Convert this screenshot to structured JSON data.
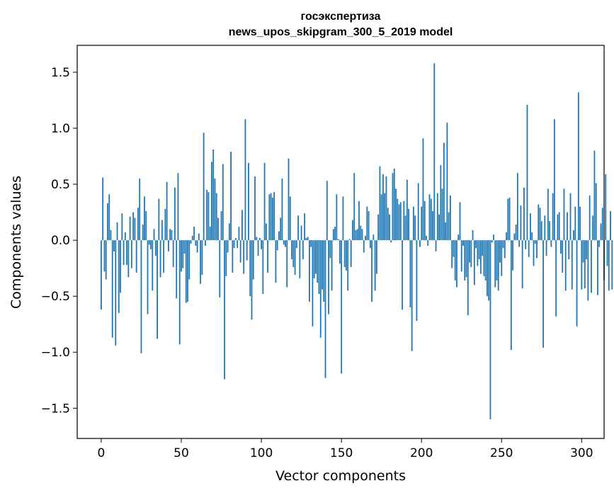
{
  "chart_data": {
    "type": "bar",
    "title_line1": "госэкспертиза",
    "title_line2": "news_upos_skipgram_300_5_2019 model",
    "xlabel": "Vector components",
    "ylabel": "Components values",
    "xlim": [
      -15,
      314
    ],
    "ylim": [
      -1.77,
      1.74
    ],
    "x_ticks": [
      0,
      50,
      100,
      150,
      200,
      250,
      300
    ],
    "x_tick_labels": [
      "0",
      "50",
      "100",
      "150",
      "200",
      "250",
      "300"
    ],
    "y_ticks": [
      -1.5,
      -1.0,
      -0.5,
      0.0,
      0.5,
      1.0,
      1.5
    ],
    "y_tick_labels": [
      "−1.5",
      "−1.0",
      "−0.5",
      "0.0",
      "0.5",
      "1.0",
      "1.5"
    ],
    "bar_color": "#1f77b4",
    "values": [
      -0.62,
      0.56,
      -0.28,
      -0.35,
      0.33,
      0.41,
      0.09,
      -0.87,
      -0.1,
      -0.94,
      0.16,
      -0.65,
      -0.47,
      0.24,
      -0.22,
      0.07,
      -0.22,
      -0.33,
      0.21,
      -0.25,
      0.25,
      0.2,
      -0.29,
      0.29,
      0.55,
      -1.01,
      0.14,
      0.39,
      0.26,
      -0.66,
      -0.04,
      -0.08,
      -0.45,
      0.1,
      -0.14,
      -0.88,
      0.37,
      -0.33,
      0.18,
      -0.29,
      0.28,
      0.52,
      -0.1,
      0.1,
      0.09,
      -0.24,
      0.47,
      -0.52,
      0.6,
      -0.93,
      -0.28,
      -0.25,
      -0.12,
      -0.56,
      -0.55,
      -0.35,
      -0.03,
      0.04,
      0.12,
      -0.05,
      -0.11,
      0.06,
      -0.39,
      -0.31,
      0.96,
      -0.05,
      0.45,
      0.43,
      0.12,
      0.7,
      0.81,
      0.55,
      0.42,
      0.2,
      -0.51,
      0.26,
      0.68,
      -1.24,
      -0.32,
      -0.11,
      0.15,
      0.79,
      -0.29,
      -0.07,
      0.02,
      -0.07,
      0.12,
      -0.2,
      0.27,
      -0.3,
      1.08,
      -0.18,
      0.69,
      -0.5,
      -0.71,
      -0.35,
      0.57,
      0.03,
      -0.14,
      0.02,
      -0.08,
      -0.48,
      0.69,
      0.15,
      -0.29,
      0.41,
      0.42,
      0.38,
      0.43,
      -0.38,
      -0.09,
      0.08,
      0.2,
      0.55,
      -0.04,
      -0.06,
      -0.42,
      0.73,
      0.39,
      -0.17,
      -0.24,
      -0.31,
      -0.07,
      0.22,
      -0.34,
      0.13,
      -0.17,
      0.24,
      0.02,
      0.03,
      -0.55,
      -0.06,
      -0.77,
      -0.34,
      -0.3,
      -0.38,
      -0.48,
      -0.87,
      -0.44,
      -0.55,
      -1.23,
      0.53,
      -0.66,
      -0.16,
      -0.45,
      0.1,
      0.12,
      0.41,
      0.01,
      -0.21,
      -1.19,
      0.39,
      -0.24,
      -0.27,
      -0.45,
      0.01,
      -0.24,
      0.18,
      0.6,
      0.09,
      0.1,
      0.35,
      0.13,
      0.1,
      -0.11,
      0.04,
      0.3,
      0.26,
      -0.07,
      -0.55,
      0.05,
      -0.45,
      -0.3,
      0.23,
      0.66,
      0.41,
      0.59,
      0.42,
      0.57,
      0.29,
      0.23,
      -0.02,
      0.6,
      0.64,
      0.46,
      0.37,
      0.32,
      0.34,
      -0.62,
      0.35,
      0.22,
      0.54,
      0.28,
      -0.6,
      -0.99,
      0.3,
      0.22,
      -0.72,
      0.51,
      -0.06,
      0.3,
      0.91,
      0.35,
      0.04,
      -0.05,
      0.41,
      0.37,
      0.26,
      1.58,
      -0.1,
      0.42,
      0.23,
      0.67,
      0.46,
      0.87,
      0.16,
      1.05,
      0.25,
      0.4,
      -0.25,
      -0.15,
      -0.36,
      -0.42,
      0.05,
      0.34,
      -0.28,
      -0.05,
      -0.36,
      -0.33,
      -0.67,
      -0.2,
      -0.24,
      0.09,
      -0.4,
      -0.07,
      -0.23,
      -0.17,
      -0.3,
      -0.14,
      -0.32,
      -0.36,
      -0.5,
      -0.54,
      -1.6,
      -0.02,
      0.05,
      -0.42,
      -0.36,
      -0.45,
      -0.2,
      -0.32,
      -0.07,
      -0.16,
      0.07,
      0.37,
      0.38,
      -0.98,
      -0.27,
      0.06,
      0.14,
      0.6,
      -0.06,
      0.31,
      -0.43,
      0.47,
      -0.08,
      1.21,
      -0.15,
      0.24,
      0.07,
      -0.23,
      -0.03,
      -0.16,
      0.32,
      0.29,
      0.17,
      -0.96,
      0.22,
      -0.14,
      0.46,
      0.17,
      -0.06,
      0.42,
      1.08,
      -0.68,
      0.23,
      0.25,
      -0.12,
      -0.29,
      0.46,
      -0.45,
      0.25,
      -0.17,
      0.42,
      -0.44,
      0.09,
      0.3,
      -0.77,
      1.32,
      0.3,
      -0.44,
      -0.2,
      -0.43,
      -0.17,
      -0.54,
      0.4,
      -0.47,
      0.22,
      0.8,
      0.51,
      -0.49,
      -0.06,
      0.15,
      0.29,
      -0.36,
      0.59,
      -0.23,
      -0.45,
      0.26,
      -0.44
    ]
  }
}
